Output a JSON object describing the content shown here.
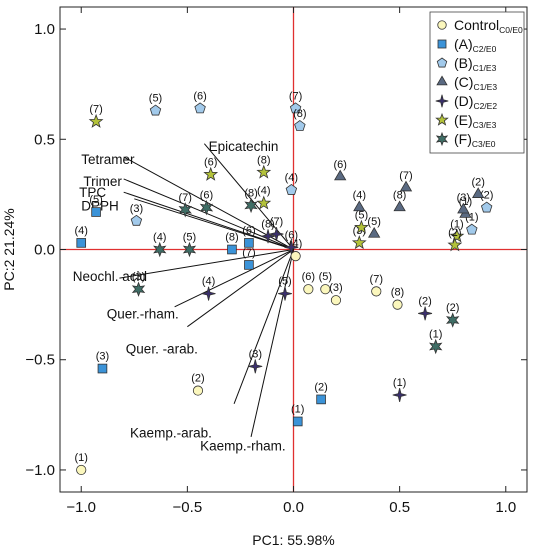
{
  "chart_data": {
    "type": "scatter",
    "xlabel": "PC1: 55.98%",
    "ylabel": "PC:2 21.24%",
    "xlim": [
      -1.1,
      1.1
    ],
    "ylim": [
      -1.1,
      1.1
    ],
    "xticks": [
      -1.0,
      -0.5,
      0.0,
      0.5,
      1.0
    ],
    "yticks": [
      -1.0,
      -0.5,
      0.0,
      0.5,
      1.0
    ],
    "xtick_labels": [
      "−1.0",
      "−0.5",
      "0.0",
      "0.5",
      "1.0"
    ],
    "ytick_labels": [
      "−1.0",
      "−0.5",
      "0.0",
      "0.5",
      "1.0"
    ],
    "grid": false,
    "legend_position": "top-right",
    "origin_line_color": "#e03030",
    "loadings": [
      {
        "label": "Epicatechin",
        "x": -0.42,
        "y": 0.48,
        "lx": -0.4,
        "ly": 0.47
      },
      {
        "label": "Tetramer",
        "x": -0.8,
        "y": 0.42,
        "lx": -1.0,
        "ly": 0.41
      },
      {
        "label": "Trimer",
        "x": -0.8,
        "y": 0.32,
        "lx": -0.99,
        "ly": 0.31
      },
      {
        "label": "TPC",
        "x": -0.8,
        "y": 0.26,
        "lx": -1.01,
        "ly": 0.26
      },
      {
        "label": "DPPH",
        "x": -0.75,
        "y": 0.23,
        "lx": -1.0,
        "ly": 0.2
      },
      {
        "label": "Neochl. acid",
        "x": -0.82,
        "y": -0.13,
        "lx": -1.04,
        "ly": -0.12
      },
      {
        "label": "Quer.-rham.",
        "x": -0.56,
        "y": -0.26,
        "lx": -0.88,
        "ly": -0.29
      },
      {
        "label": "Quer. -arab.",
        "x": -0.5,
        "y": -0.35,
        "lx": -0.79,
        "ly": -0.45
      },
      {
        "label": "Kaemp.-arab.",
        "x": -0.28,
        "y": -0.7,
        "lx": -0.77,
        "ly": -0.83
      },
      {
        "label": "Kaemp.-rham.",
        "x": -0.2,
        "y": -0.85,
        "lx": -0.44,
        "ly": -0.89
      }
    ],
    "series": [
      {
        "name": "Control",
        "sub": "C0/E0",
        "marker": "circle",
        "color": "#fbf7bd",
        "points": [
          {
            "x": -1.0,
            "y": -1.0,
            "label": "(1)"
          },
          {
            "x": -0.45,
            "y": -0.64,
            "label": "(2)"
          },
          {
            "x": 0.2,
            "y": -0.23,
            "label": "(3)"
          },
          {
            "x": 0.01,
            "y": -0.03,
            "label": "(4)"
          },
          {
            "x": 0.15,
            "y": -0.18,
            "label": "(5)"
          },
          {
            "x": 0.07,
            "y": -0.18,
            "label": "(6)"
          },
          {
            "x": 0.39,
            "y": -0.19,
            "label": "(7)"
          },
          {
            "x": 0.49,
            "y": -0.25,
            "label": "(8)"
          }
        ]
      },
      {
        "name": "(A)",
        "sub": "C2/E0",
        "marker": "square",
        "color": "#3b93d8",
        "points": [
          {
            "x": 0.02,
            "y": -0.78,
            "label": "(1)"
          },
          {
            "x": 0.13,
            "y": -0.68,
            "label": "(2)"
          },
          {
            "x": -0.9,
            "y": -0.54,
            "label": "(3)"
          },
          {
            "x": -1.0,
            "y": 0.03,
            "label": "(4)"
          },
          {
            "x": -0.93,
            "y": 0.17,
            "label": "(5)"
          },
          {
            "x": -0.21,
            "y": 0.03,
            "label": "(6)"
          },
          {
            "x": -0.21,
            "y": -0.07,
            "label": "(7)"
          },
          {
            "x": -0.29,
            "y": 0.0,
            "label": "(8)"
          }
        ]
      },
      {
        "name": "(B)",
        "sub": "C1/E3",
        "marker": "pentagon",
        "color": "#a2caeb",
        "points": [
          {
            "x": 0.84,
            "y": 0.09,
            "label": "(1)"
          },
          {
            "x": 0.91,
            "y": 0.19,
            "label": "(2)"
          },
          {
            "x": -0.74,
            "y": 0.13,
            "label": "(3)"
          },
          {
            "x": -0.01,
            "y": 0.27,
            "label": "(4)"
          },
          {
            "x": -0.65,
            "y": 0.63,
            "label": "(5)"
          },
          {
            "x": -0.44,
            "y": 0.64,
            "label": "(6)"
          },
          {
            "x": 0.01,
            "y": 0.64,
            "label": "(7)"
          },
          {
            "x": 0.03,
            "y": 0.56,
            "label": "(8)"
          }
        ]
      },
      {
        "name": "(C)",
        "sub": "C1/E3",
        "marker": "triangle",
        "color": "#5a6a82",
        "points": [
          {
            "x": 0.81,
            "y": 0.16,
            "label": "(1)"
          },
          {
            "x": 0.87,
            "y": 0.25,
            "label": "(2)"
          },
          {
            "x": 0.8,
            "y": 0.18,
            "label": "(3)"
          },
          {
            "x": 0.31,
            "y": 0.19,
            "label": "(4)"
          },
          {
            "x": 0.38,
            "y": 0.07,
            "label": "(5)"
          },
          {
            "x": 0.22,
            "y": 0.33,
            "label": "(6)"
          },
          {
            "x": 0.53,
            "y": 0.28,
            "label": "(7)"
          },
          {
            "x": 0.5,
            "y": 0.19,
            "label": "(8)"
          }
        ]
      },
      {
        "name": "(D)",
        "sub": "C2/E2",
        "marker": "star4",
        "color": "#3a2f6e",
        "points": [
          {
            "x": 0.5,
            "y": -0.66,
            "label": "(1)"
          },
          {
            "x": 0.62,
            "y": -0.29,
            "label": "(2)"
          },
          {
            "x": -0.18,
            "y": -0.53,
            "label": "(3)"
          },
          {
            "x": -0.4,
            "y": -0.2,
            "label": "(4)"
          },
          {
            "x": -0.04,
            "y": -0.2,
            "label": "(5)"
          },
          {
            "x": -0.01,
            "y": 0.01,
            "label": "(6)"
          },
          {
            "x": -0.08,
            "y": 0.07,
            "label": "(7)"
          },
          {
            "x": -0.12,
            "y": 0.06,
            "label": "(8)"
          }
        ]
      },
      {
        "name": "(E)",
        "sub": "C3/E3",
        "marker": "star5",
        "color": "#b3c23a",
        "points": [
          {
            "x": 0.77,
            "y": 0.06,
            "label": "(1)"
          },
          {
            "x": 0.76,
            "y": 0.02,
            "label": "(2)"
          },
          {
            "x": 0.31,
            "y": 0.03,
            "label": "(3)"
          },
          {
            "x": -0.14,
            "y": 0.21,
            "label": "(4)"
          },
          {
            "x": 0.32,
            "y": 0.1,
            "label": "(5)"
          },
          {
            "x": -0.39,
            "y": 0.34,
            "label": "(6)"
          },
          {
            "x": -0.93,
            "y": 0.58,
            "label": "(7)"
          },
          {
            "x": -0.14,
            "y": 0.35,
            "label": "(8)"
          }
        ]
      },
      {
        "name": "(F)",
        "sub": "C3/E0",
        "marker": "star6",
        "color": "#3f6e66",
        "points": [
          {
            "x": 0.67,
            "y": -0.44,
            "label": "(1)"
          },
          {
            "x": 0.75,
            "y": -0.32,
            "label": "(2)"
          },
          {
            "x": -0.73,
            "y": -0.18,
            "label": "(3)"
          },
          {
            "x": -0.63,
            "y": 0.0,
            "label": "(4)"
          },
          {
            "x": -0.49,
            "y": 0.0,
            "label": "(5)"
          },
          {
            "x": -0.41,
            "y": 0.19,
            "label": "(6)"
          },
          {
            "x": -0.51,
            "y": 0.18,
            "label": "(7)"
          },
          {
            "x": -0.2,
            "y": 0.2,
            "label": "(8)"
          }
        ]
      }
    ]
  }
}
